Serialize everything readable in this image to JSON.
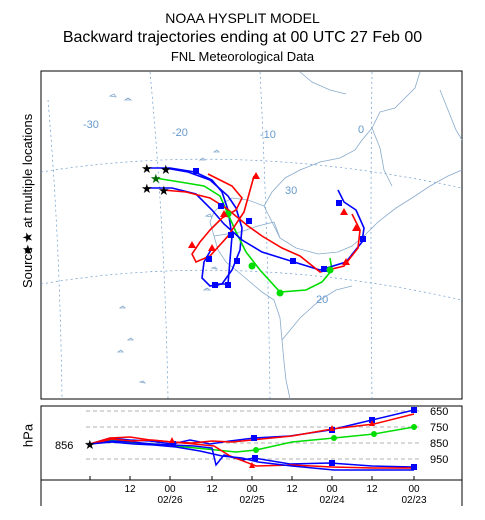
{
  "title": {
    "line1": "NOAA HYSPLIT MODEL",
    "line2": "Backward trajectories ending at 00 UTC 27 Feb 00",
    "line3": "FNL  Meteorological Data"
  },
  "y_axis_label": "Source ★ at multiple locations",
  "map": {
    "longitude_labels": [
      "-30",
      "-20",
      "-10",
      "0"
    ],
    "latitude_labels": [
      "30",
      "20"
    ]
  },
  "vertical_panel": {
    "axis_label": "hPa",
    "start_level_label": "856",
    "level_labels": [
      "650",
      "750",
      "850",
      "950"
    ],
    "time_labels": [
      "12",
      "00",
      "12",
      "00",
      "12",
      "00",
      "12",
      "00"
    ],
    "date_labels": [
      "02/26",
      "02/25",
      "02/24",
      "02/23"
    ]
  },
  "colors": {
    "red": "#ff0000",
    "blue": "#0000ff",
    "green": "#00dd00",
    "dark_blue": "#0000cc",
    "grid": "#6699cc",
    "coast": "#88aacc"
  }
}
